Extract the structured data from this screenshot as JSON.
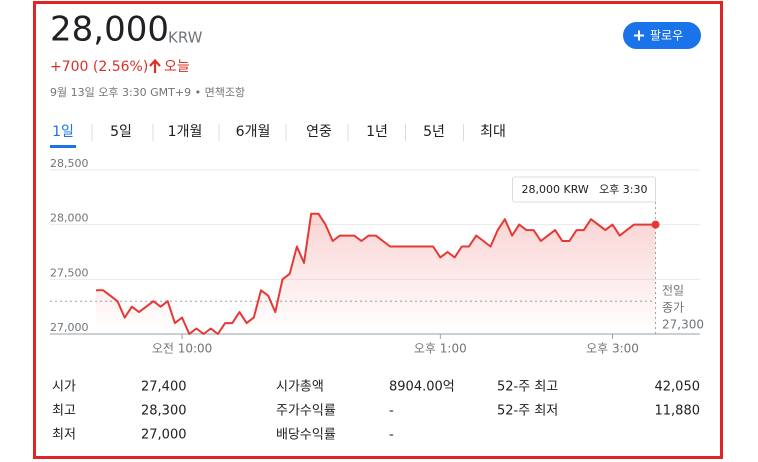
{
  "header": {
    "price": "28,000",
    "currency": "KRW",
    "change": "+700 (2.56%)",
    "period": "오늘",
    "date": "9월 13일 오후 3:30 GMT+9 • 면책조항",
    "follow": "팔로우"
  },
  "tabs": [
    "1일",
    "5일",
    "1개월",
    "6개월",
    "연중",
    "1년",
    "5년",
    "최대"
  ],
  "active_tab": 0,
  "chart_data": {
    "type": "line",
    "color": "#e53935",
    "x": [
      540,
      545,
      550,
      555,
      560,
      565,
      570,
      575,
      580,
      585,
      590,
      595,
      600,
      605,
      610,
      615,
      620,
      625,
      630,
      635,
      640,
      645,
      650,
      655,
      660,
      665,
      670,
      675,
      680,
      685,
      690,
      695,
      700,
      705,
      710,
      715,
      720,
      725,
      730,
      735,
      740,
      745,
      750,
      755,
      760,
      765,
      770,
      775,
      780,
      785,
      790,
      795,
      800,
      805,
      810,
      815,
      820,
      825,
      830,
      835,
      840,
      845,
      850,
      855,
      860,
      865,
      870,
      875,
      880,
      885,
      890,
      895,
      900,
      905,
      910,
      915,
      920,
      925,
      930
    ],
    "values": [
      27400,
      27400,
      27350,
      27300,
      27150,
      27250,
      27200,
      27250,
      27300,
      27250,
      27300,
      27100,
      27150,
      27000,
      27050,
      27000,
      27050,
      27000,
      27100,
      27100,
      27200,
      27100,
      27150,
      27400,
      27350,
      27200,
      27500,
      27550,
      27800,
      27650,
      28100,
      28100,
      28000,
      27850,
      27900,
      27900,
      27900,
      27850,
      27900,
      27900,
      27850,
      27800,
      27800,
      27800,
      27800,
      27800,
      27800,
      27800,
      27700,
      27750,
      27700,
      27800,
      27800,
      27900,
      27850,
      27800,
      27950,
      28050,
      27900,
      28000,
      27950,
      27950,
      27850,
      27900,
      27950,
      27850,
      27850,
      27950,
      27950,
      28050,
      28000,
      27950,
      28000,
      27900,
      27950,
      28000,
      28000,
      28000,
      28000
    ],
    "xlim": [
      540,
      961
    ],
    "xticks": [
      {
        "value": 600,
        "label": "오전 10:00"
      },
      {
        "value": 780,
        "label": "오후 1:00"
      },
      {
        "value": 900,
        "label": "오후 3:00"
      }
    ],
    "ylim": [
      27000,
      28600
    ],
    "yticks": [
      {
        "value": 27000,
        "label": "27,000"
      },
      {
        "value": 27500,
        "label": "27,500"
      },
      {
        "value": 28000,
        "label": "28,000"
      },
      {
        "value": 28500,
        "label": "28,500"
      }
    ],
    "grid": true,
    "reference_label": [
      "전일",
      "종가"
    ],
    "reference_value": 27300,
    "reference_value_label": "27,300",
    "tooltip": {
      "value_label": "28,000 KRW",
      "time": "오후 3:30"
    }
  },
  "stats": [
    [
      [
        "시가",
        "27,400"
      ],
      [
        "최고",
        "28,300"
      ],
      [
        "최저",
        "27,000"
      ]
    ],
    [
      [
        "시가총액",
        "8904.00억"
      ],
      [
        "주가수익률",
        "-"
      ],
      [
        "배당수익률",
        "-"
      ]
    ],
    [
      [
        "52-주 최고",
        "42,050"
      ],
      [
        "52-주 최저",
        "11,880"
      ]
    ]
  ]
}
